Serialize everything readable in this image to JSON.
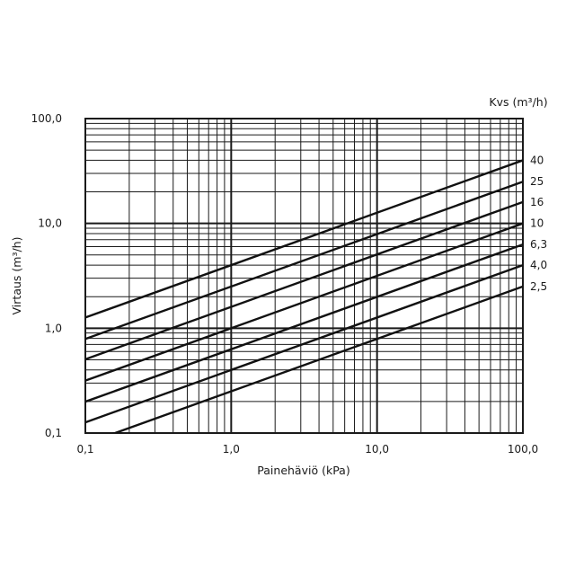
{
  "chart_data": {
    "type": "line",
    "title": "",
    "xlabel": "Painehäviö (kPa)",
    "ylabel": "Virtaus   (m³/h)",
    "legend_title": "Kvs (m³/h)",
    "x_scale": "log",
    "y_scale": "log",
    "xlim": [
      0.1,
      100
    ],
    "ylim": [
      0.1,
      100
    ],
    "x_ticks": [
      {
        "value": 0.1,
        "label": "0,1"
      },
      {
        "value": 1,
        "label": "1,0"
      },
      {
        "value": 10,
        "label": "10,0"
      },
      {
        "value": 100,
        "label": "100,0"
      }
    ],
    "y_ticks": [
      {
        "value": 0.1,
        "label": "0,1"
      },
      {
        "value": 1,
        "label": "1,0"
      },
      {
        "value": 10,
        "label": "10,0"
      },
      {
        "value": 100,
        "label": "100,0"
      }
    ],
    "grid": true,
    "legend_position": "right, at line ends",
    "series": [
      {
        "name": "40",
        "kvs": 40,
        "x": [
          0.1,
          100
        ],
        "values": [
          1.26,
          40
        ]
      },
      {
        "name": "25",
        "kvs": 25,
        "x": [
          0.1,
          100
        ],
        "values": [
          0.79,
          25
        ]
      },
      {
        "name": "16",
        "kvs": 16,
        "x": [
          0.1,
          100
        ],
        "values": [
          0.51,
          16
        ]
      },
      {
        "name": "10",
        "kvs": 10,
        "x": [
          0.1,
          100
        ],
        "values": [
          0.32,
          10
        ]
      },
      {
        "name": "6,3",
        "kvs": 6.3,
        "x": [
          0.1,
          100
        ],
        "values": [
          0.2,
          6.3
        ]
      },
      {
        "name": "4,0",
        "kvs": 4,
        "x": [
          0.1,
          100
        ],
        "values": [
          0.13,
          4
        ]
      },
      {
        "name": "2,5",
        "kvs": 2.5,
        "x": [
          0.1,
          100
        ],
        "values": [
          0.08,
          2.5
        ]
      }
    ],
    "colors": {
      "line": "#111111",
      "grid": "#1a1a1a",
      "background": "#ffffff"
    }
  }
}
